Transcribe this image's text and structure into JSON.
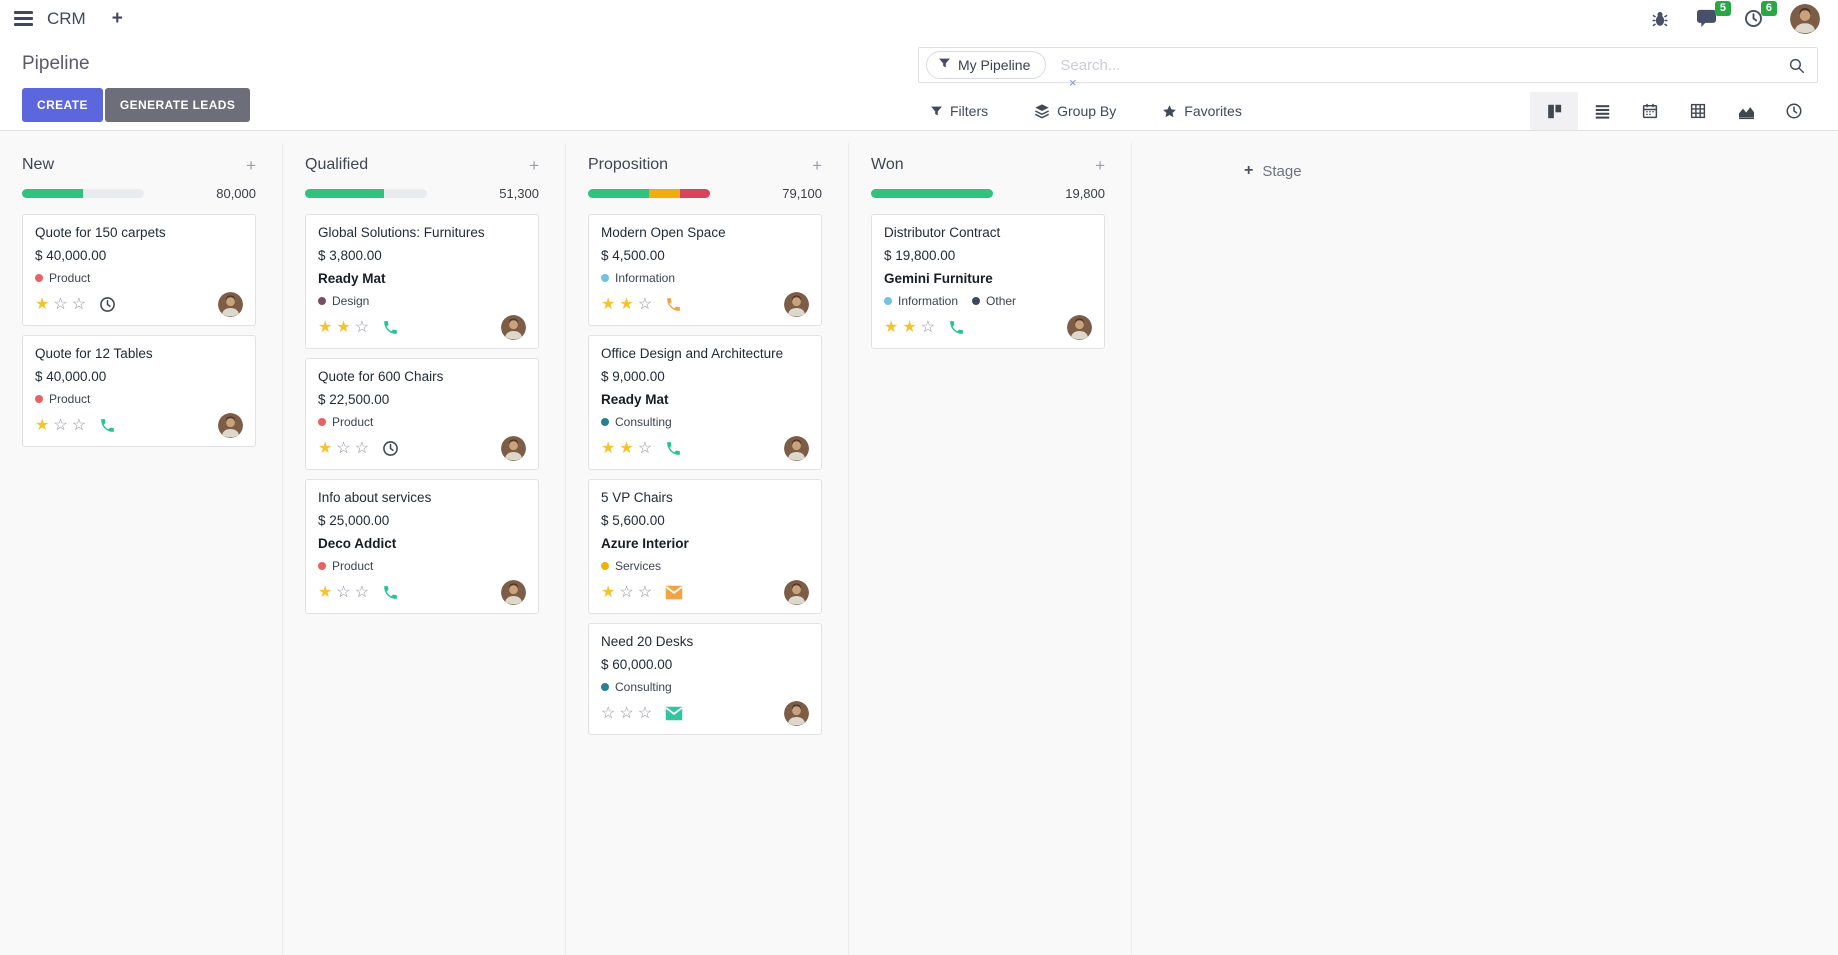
{
  "navbar": {
    "app_name": "CRM",
    "message_badge": "5",
    "activity_badge": "6"
  },
  "control_panel": {
    "title": "Pipeline",
    "buttons": {
      "create": "CREATE",
      "generate_leads": "GENERATE LEADS"
    },
    "search": {
      "facet": "My Pipeline",
      "placeholder": "Search..."
    },
    "menus": {
      "filters": "Filters",
      "group_by": "Group By",
      "favorites": "Favorites"
    }
  },
  "icons": {
    "plus": "+",
    "close": "×",
    "star_filled": "★",
    "star_empty": "☆"
  },
  "colors": {
    "primary_button": "#5c66dd",
    "secondary_button": "#6e6d7a",
    "badge_green": "#28a745",
    "progress_green": "#32c27f",
    "progress_yellow": "#f0ad0e",
    "progress_red": "#d6455c",
    "star_gold": "#f2c42d",
    "board_background": "#f9f9fa"
  },
  "board": {
    "add_stage_label": "Stage",
    "columns": [
      {
        "name": "New",
        "total": "80,000",
        "progress": {
          "segments": [
            {
              "color": "#32c27f",
              "pct": 50
            }
          ]
        },
        "cards": [
          {
            "title": "Quote for 150 carpets",
            "amount": "$ 40,000.00",
            "tags": [
              {
                "label": "Product",
                "color": "#ea6161"
              }
            ],
            "stars": 1,
            "action": {
              "icon": "clock",
              "color": "#41474e"
            }
          },
          {
            "title": "Quote for 12 Tables",
            "amount": "$ 40,000.00",
            "tags": [
              {
                "label": "Product",
                "color": "#ea6161"
              }
            ],
            "stars": 1,
            "action": {
              "icon": "phone",
              "color": "#28c499"
            }
          }
        ]
      },
      {
        "name": "Qualified",
        "total": "51,300",
        "progress": {
          "segments": [
            {
              "color": "#32c27f",
              "pct": 65
            }
          ]
        },
        "cards": [
          {
            "title": "Global Solutions: Furnitures",
            "amount": "$ 3,800.00",
            "partner": "Ready Mat",
            "tags": [
              {
                "label": "Design",
                "color": "#7c4b63"
              }
            ],
            "stars": 2,
            "action": {
              "icon": "phone",
              "color": "#28c499"
            }
          },
          {
            "title": "Quote for 600 Chairs",
            "amount": "$ 22,500.00",
            "tags": [
              {
                "label": "Product",
                "color": "#ea6161"
              }
            ],
            "stars": 1,
            "action": {
              "icon": "clock",
              "color": "#41474e"
            }
          },
          {
            "title": "Info about services",
            "amount": "$ 25,000.00",
            "partner": "Deco Addict",
            "tags": [
              {
                "label": "Product",
                "color": "#ea6161"
              }
            ],
            "stars": 1,
            "action": {
              "icon": "phone",
              "color": "#28c499"
            }
          }
        ]
      },
      {
        "name": "Proposition",
        "total": "79,100",
        "progress": {
          "segments": [
            {
              "color": "#32c27f",
              "pct": 50
            },
            {
              "color": "#f0ad0e",
              "pct": 25
            },
            {
              "color": "#d6455c",
              "pct": 25
            }
          ]
        },
        "cards": [
          {
            "title": "Modern Open Space",
            "amount": "$ 4,500.00",
            "tags": [
              {
                "label": "Information",
                "color": "#72c2e2"
              }
            ],
            "stars": 2,
            "action": {
              "icon": "phone",
              "color": "#f2a444"
            }
          },
          {
            "title": "Office Design and Architecture",
            "amount": "$ 9,000.00",
            "partner": "Ready Mat",
            "tags": [
              {
                "label": "Consulting",
                "color": "#277f93"
              }
            ],
            "stars": 2,
            "action": {
              "icon": "phone",
              "color": "#28c499"
            }
          },
          {
            "title": "5 VP Chairs",
            "amount": "$ 5,600.00",
            "partner": "Azure Interior",
            "tags": [
              {
                "label": "Services",
                "color": "#efb211"
              }
            ],
            "stars": 1,
            "action": {
              "icon": "envelope",
              "color": "#f2a444"
            }
          },
          {
            "title": "Need 20 Desks",
            "amount": "$ 60,000.00",
            "tags": [
              {
                "label": "Consulting",
                "color": "#277f93"
              }
            ],
            "stars": 0,
            "action": {
              "icon": "envelope",
              "color": "#2ec7a0"
            }
          }
        ]
      },
      {
        "name": "Won",
        "total": "19,800",
        "progress": {
          "segments": [
            {
              "color": "#32c27f",
              "pct": 100
            }
          ]
        },
        "cards": [
          {
            "title": "Distributor Contract",
            "amount": "$ 19,800.00",
            "partner": "Gemini Furniture",
            "tags": [
              {
                "label": "Information",
                "color": "#72c2e2"
              },
              {
                "label": "Other",
                "color": "#3e4760"
              }
            ],
            "stars": 2,
            "action": {
              "icon": "phone",
              "color": "#28c499"
            }
          }
        ]
      }
    ]
  }
}
